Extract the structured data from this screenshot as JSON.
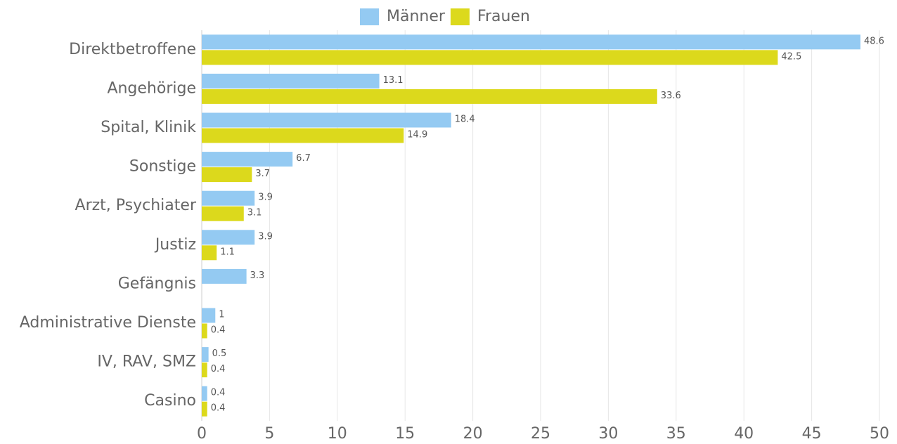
{
  "chart_data": {
    "type": "bar",
    "orientation": "horizontal",
    "categories": [
      "Direktbetroffene",
      "Angehörige",
      "Spital, Klinik",
      "Sonstige",
      "Arzt, Psychiater",
      "Justiz",
      "Gefängnis",
      "Administrative Dienste",
      "IV, RAV, SMZ",
      "Casino"
    ],
    "series": [
      {
        "name": "Männer",
        "color": "#94caf2",
        "values": [
          48.6,
          13.1,
          18.4,
          6.7,
          3.9,
          3.9,
          3.3,
          1,
          0.5,
          0.4
        ]
      },
      {
        "name": "Frauen",
        "color": "#dcd91c",
        "values": [
          42.5,
          33.6,
          14.9,
          3.7,
          3.1,
          1.1,
          null,
          0.4,
          0.4,
          0.4
        ]
      }
    ],
    "xlim": [
      0,
      50
    ],
    "xticks": [
      0,
      5,
      10,
      15,
      20,
      25,
      30,
      35,
      40,
      45,
      50
    ],
    "grid": true,
    "legend": "top"
  }
}
